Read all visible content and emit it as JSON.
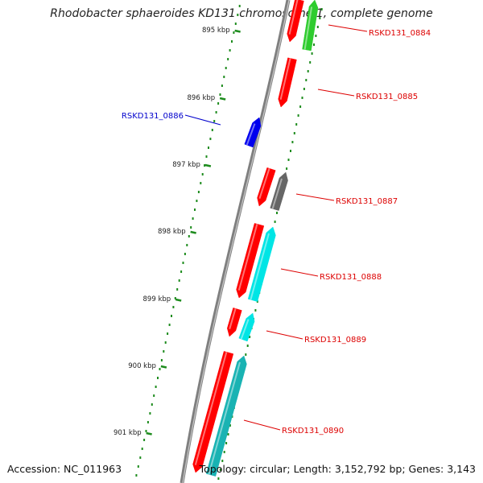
{
  "title": "Rhodobacter sphaeroides KD131 chromosome 1, complete genome",
  "footer": {
    "accession": "Accession: NC_011963",
    "topology": "Topology: circular; Length: 3,152,792 bp; Genes: 3,143"
  },
  "colors": {
    "backbone": "#7f7f7f",
    "tick": "#1e8c1e",
    "red": "#ff0000",
    "green": "#2ecc2e",
    "blue": "#0000ee",
    "gray": "#666666",
    "cyan": "#00e5e5",
    "teal": "#19b3b3",
    "label_red": "#dd0000",
    "label_blue": "#0000cc"
  },
  "chart_data": {
    "type": "genome-map",
    "scale_labels": [
      "895 kbp",
      "896 kbp",
      "897 kbp",
      "898 kbp",
      "899 kbp",
      "900 kbp",
      "901 kbp"
    ],
    "gene_labels": [
      {
        "name": "RSKD131_0884",
        "color": "red"
      },
      {
        "name": "RSKD131_0885",
        "color": "red"
      },
      {
        "name": "RSKD131_0886",
        "color": "blue"
      },
      {
        "name": "RSKD131_0887",
        "color": "red"
      },
      {
        "name": "RSKD131_0888",
        "color": "red"
      },
      {
        "name": "RSKD131_0889",
        "color": "red"
      },
      {
        "name": "RSKD131_0890",
        "color": "red"
      }
    ]
  }
}
